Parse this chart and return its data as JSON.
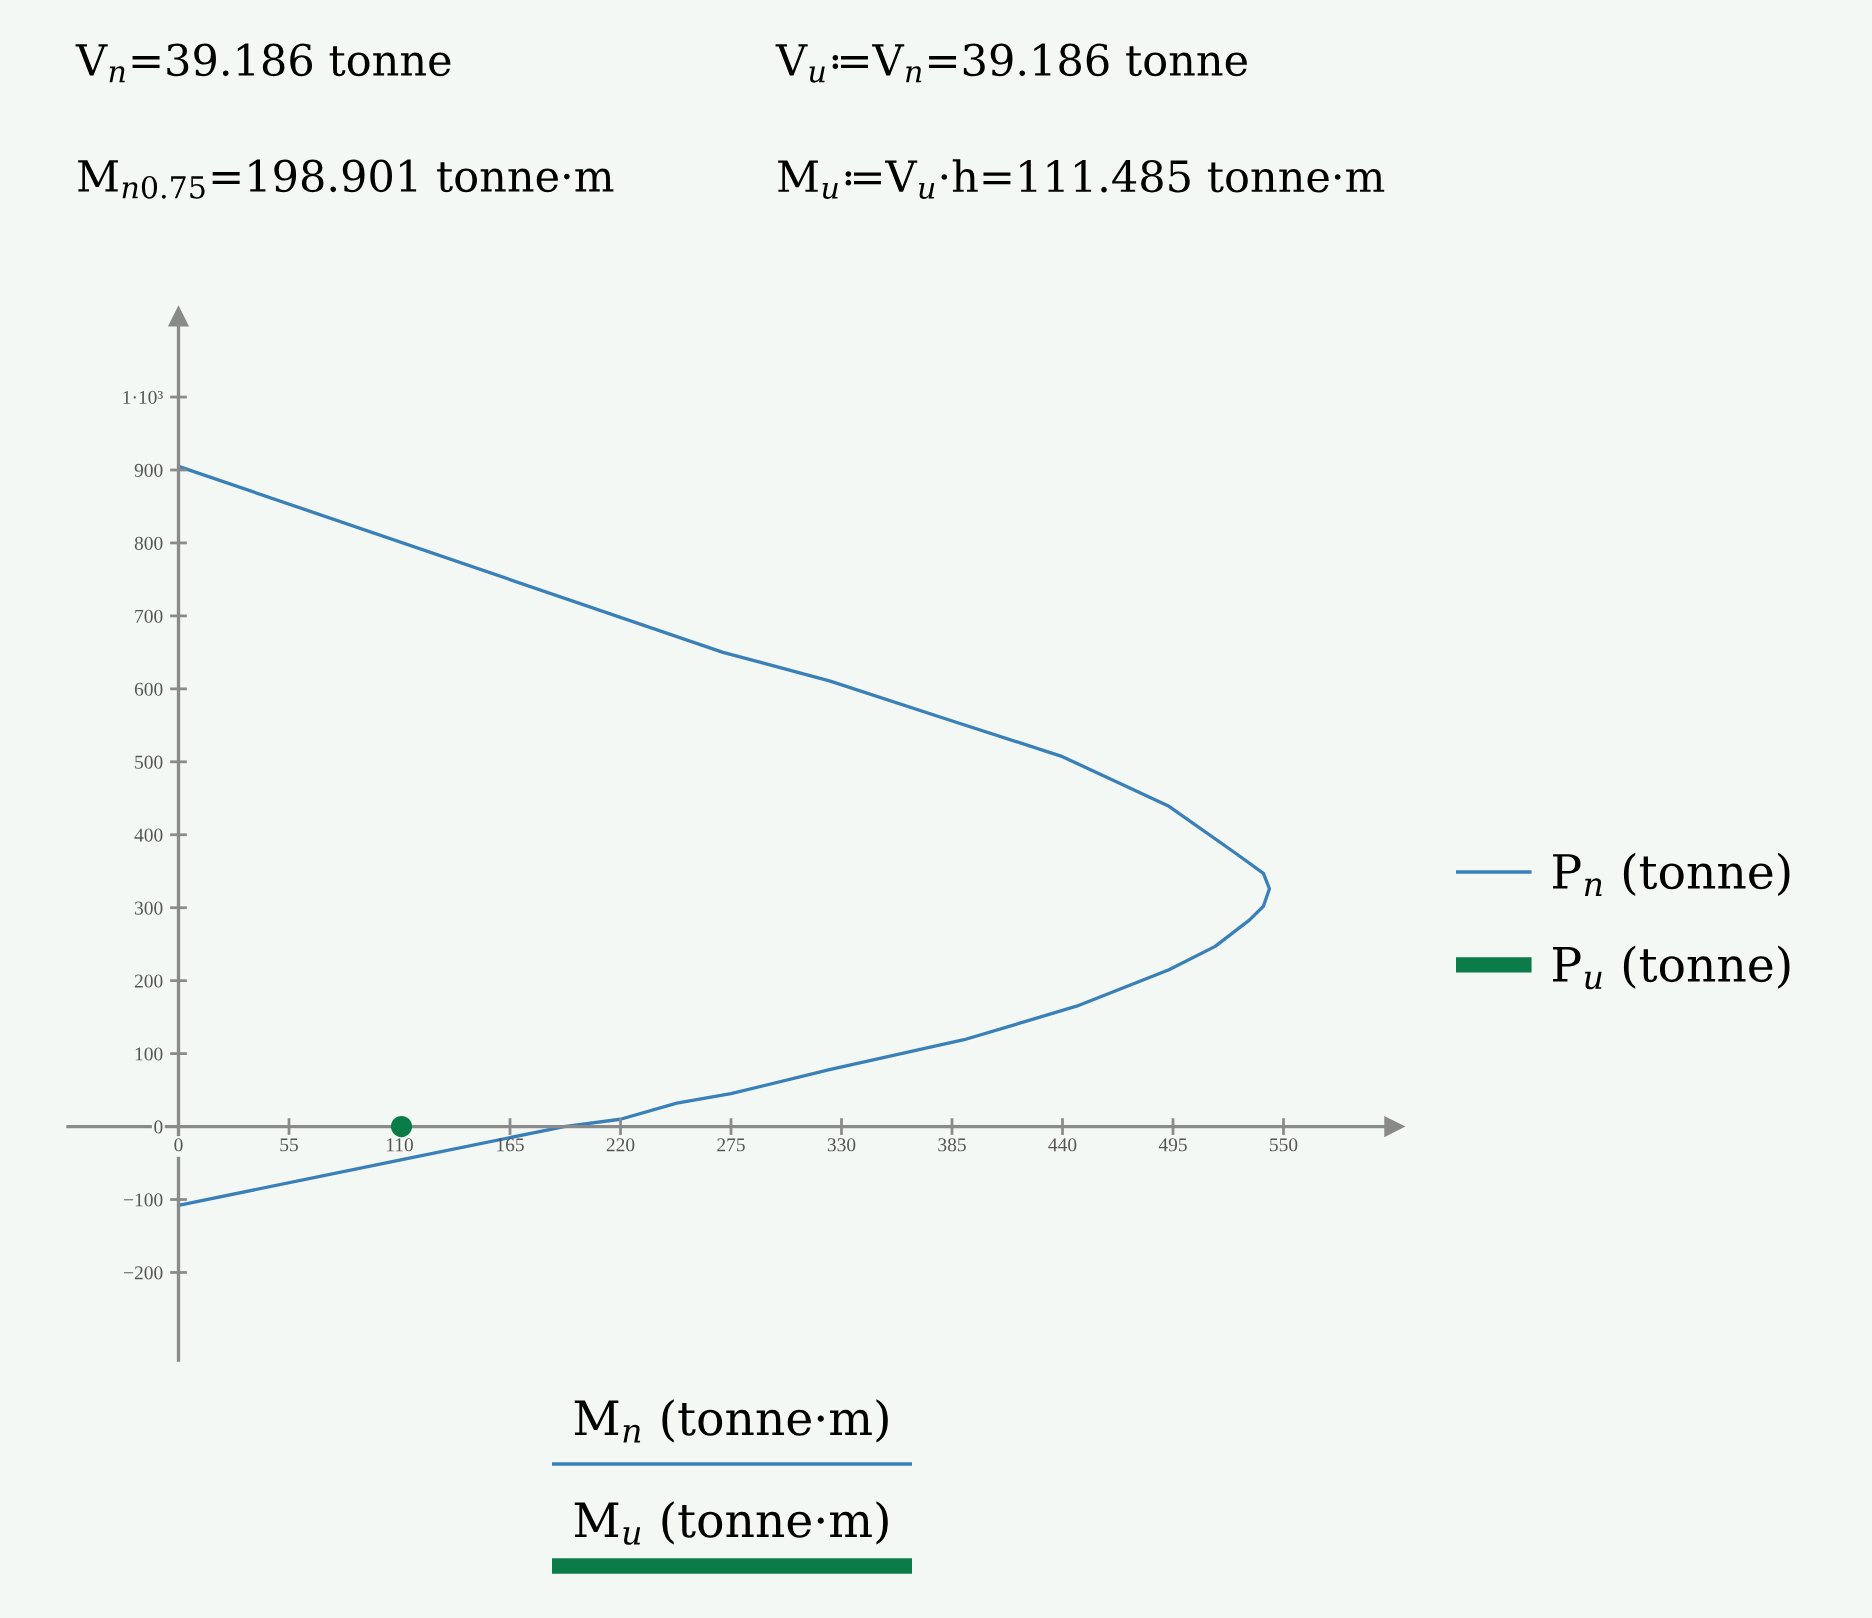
{
  "chart_data": {
    "type": "line",
    "annotations": [
      "V$_{n}$=39.186 tonne",
      "V$_{u}$≔V$_{n}$=39.186 tonne",
      "M$_{n0.75}$=198.901 tonne·m",
      "M$_{u}$≔V$_{u}$·h=111.485 tonne·m",
      "M$_{n}$ (tonne·m)",
      "M$_{u}$ (tonne·m)"
    ],
    "xlim": [
      -55,
      605
    ],
    "ylim": [
      -320,
      1110
    ],
    "xticks": [
      0,
      55,
      110,
      165,
      220,
      275,
      330,
      385,
      440,
      495,
      550
    ],
    "yticks": [
      -200,
      -100,
      0,
      100,
      200,
      300,
      400,
      500,
      600,
      700,
      800,
      900,
      {
        "value": 1000,
        "label": "1·10³"
      }
    ],
    "legend": "right",
    "series": [
      {
        "name": "P$_{n}$ (tonne)",
        "color": "#3a80b8",
        "x": [
          0,
          271,
          324,
          384,
          440,
          493,
          526,
          540,
          543,
          540,
          533,
          516,
          493,
          447,
          391,
          324,
          275,
          248,
          220,
          192,
          110,
          0
        ],
        "values": [
          905,
          650,
          611,
          557,
          507,
          439,
          375,
          347,
          326,
          302,
          283,
          247,
          215,
          165,
          119,
          78,
          45,
          32,
          10,
          0,
          -46,
          -108
        ]
      },
      {
        "name": "P$_{u}$ (tonne)",
        "type": "scatter",
        "marker": "circle",
        "color": "#0b7b47",
        "x": [
          111
        ],
        "values": [
          0
        ]
      }
    ]
  }
}
